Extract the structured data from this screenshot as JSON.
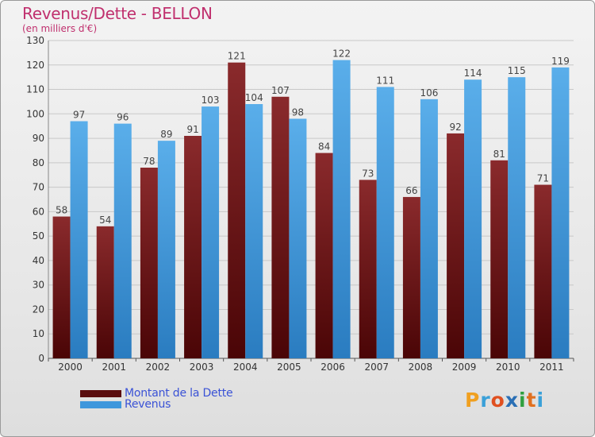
{
  "chart_data": {
    "type": "bar",
    "title": "Revenus/Dette - BELLON",
    "subtitle": "(en milliers d'€)",
    "categories": [
      "2000",
      "2001",
      "2002",
      "2003",
      "2004",
      "2005",
      "2006",
      "2007",
      "2008",
      "2009",
      "2010",
      "2011"
    ],
    "series": [
      {
        "name": "Montant de la Dette",
        "color": "#7a1a1c",
        "values": [
          58,
          54,
          78,
          91,
          121,
          107,
          84,
          73,
          66,
          92,
          81,
          71
        ]
      },
      {
        "name": "Revenus",
        "color": "#4da3e3",
        "values": [
          97,
          96,
          89,
          103,
          104,
          98,
          122,
          111,
          106,
          114,
          115,
          119
        ]
      }
    ],
    "ylim": [
      0,
      130
    ],
    "yticks": [
      0,
      10,
      20,
      30,
      40,
      50,
      60,
      70,
      80,
      90,
      100,
      110,
      120,
      130
    ],
    "grid": true,
    "legend_position": "bottom-left"
  },
  "legend": [
    {
      "label": "Montant de la Dette",
      "color": "#7a1a1c"
    },
    {
      "label": "Revenus",
      "color": "#4da3e3"
    }
  ],
  "brand": {
    "text": "Proxiti",
    "colors": [
      "#f0a020",
      "#3aa0d8",
      "#e05020",
      "#2a6fb5",
      "#30a040",
      "#e07020",
      "#3aa0d8"
    ]
  }
}
